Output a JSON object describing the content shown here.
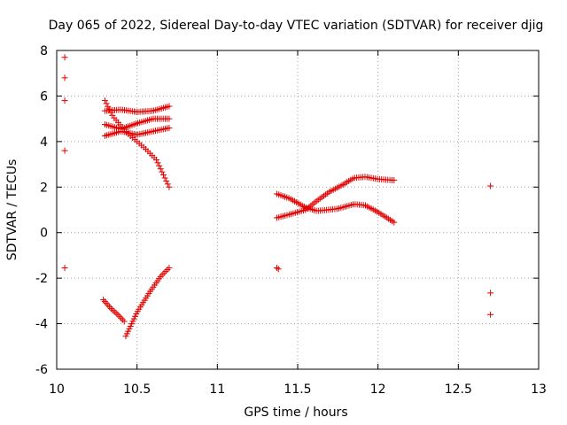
{
  "chart_data": {
    "type": "scatter",
    "title": "Day 065 of 2022, Sidereal Day-to-day VTEC variation (SDTVAR) for receiver djig",
    "xlabel": "GPS time / hours",
    "ylabel": "SDTVAR / TECUs",
    "xlim": [
      10,
      13
    ],
    "ylim": [
      -6,
      8
    ],
    "xticks": [
      10,
      10.5,
      11,
      11.5,
      12,
      12.5,
      13
    ],
    "xtick_labels": [
      "10",
      "10.5",
      "11",
      "11.5",
      "12",
      "12.5",
      "13"
    ],
    "yticks": [
      -6,
      -4,
      -2,
      0,
      2,
      4,
      6,
      8
    ],
    "ytick_labels": [
      "-6",
      "-4",
      "-2",
      "0",
      "2",
      "4",
      "6",
      "8"
    ],
    "grid": true,
    "marker": "+",
    "marker_color": "#e00000",
    "series": [
      {
        "name": "isolated-points",
        "points": [
          [
            10.05,
            7.7
          ],
          [
            10.05,
            6.8
          ],
          [
            10.05,
            5.8
          ],
          [
            10.05,
            3.6
          ],
          [
            10.05,
            -1.55
          ],
          [
            11.38,
            -1.6
          ],
          [
            11.37,
            -1.55
          ],
          [
            12.7,
            2.05
          ],
          [
            12.7,
            -2.65
          ],
          [
            12.7,
            -3.6
          ]
        ]
      },
      {
        "name": "descending-track-a",
        "start": [
          10.3,
          5.8
        ],
        "end": [
          10.7,
          2.0
        ],
        "count": 36,
        "curve": [
          [
            10.3,
            5.8
          ],
          [
            10.35,
            5.1
          ],
          [
            10.45,
            4.3
          ],
          [
            10.55,
            3.7
          ],
          [
            10.62,
            3.2
          ],
          [
            10.7,
            2.0
          ]
        ]
      },
      {
        "name": "upper-wave",
        "curve": [
          [
            10.3,
            5.35
          ],
          [
            10.4,
            5.4
          ],
          [
            10.5,
            5.3
          ],
          [
            10.6,
            5.35
          ],
          [
            10.7,
            5.55
          ]
        ],
        "count": 34
      },
      {
        "name": "middle-wave",
        "curve": [
          [
            10.3,
            4.75
          ],
          [
            10.4,
            4.55
          ],
          [
            10.5,
            4.8
          ],
          [
            10.6,
            5.0
          ],
          [
            10.7,
            5.0
          ]
        ],
        "count": 34
      },
      {
        "name": "lower-wave",
        "curve": [
          [
            10.3,
            4.25
          ],
          [
            10.4,
            4.45
          ],
          [
            10.5,
            4.3
          ],
          [
            10.6,
            4.45
          ],
          [
            10.7,
            4.6
          ]
        ],
        "count": 34
      },
      {
        "name": "negative-track-left",
        "curve": [
          [
            10.29,
            -2.95
          ],
          [
            10.34,
            -3.35
          ],
          [
            10.38,
            -3.6
          ],
          [
            10.42,
            -3.9
          ]
        ],
        "count": 14
      },
      {
        "name": "negative-track-rise",
        "curve": [
          [
            10.43,
            -4.55
          ],
          [
            10.5,
            -3.5
          ],
          [
            10.58,
            -2.6
          ],
          [
            10.65,
            -1.9
          ],
          [
            10.7,
            -1.55
          ]
        ],
        "count": 32
      },
      {
        "name": "track-b-falling",
        "curve": [
          [
            11.37,
            1.7
          ],
          [
            11.45,
            1.5
          ],
          [
            11.55,
            1.1
          ],
          [
            11.62,
            0.95
          ],
          [
            11.75,
            1.05
          ],
          [
            11.85,
            1.25
          ],
          [
            11.92,
            1.2
          ],
          [
            12.0,
            0.9
          ],
          [
            12.1,
            0.45
          ]
        ],
        "count": 60
      },
      {
        "name": "track-c-rising",
        "curve": [
          [
            11.37,
            0.65
          ],
          [
            11.45,
            0.8
          ],
          [
            11.55,
            1.0
          ],
          [
            11.62,
            1.4
          ],
          [
            11.7,
            1.8
          ],
          [
            11.78,
            2.1
          ],
          [
            11.85,
            2.4
          ],
          [
            11.92,
            2.45
          ],
          [
            12.0,
            2.35
          ],
          [
            12.1,
            2.3
          ]
        ],
        "count": 60
      }
    ]
  }
}
